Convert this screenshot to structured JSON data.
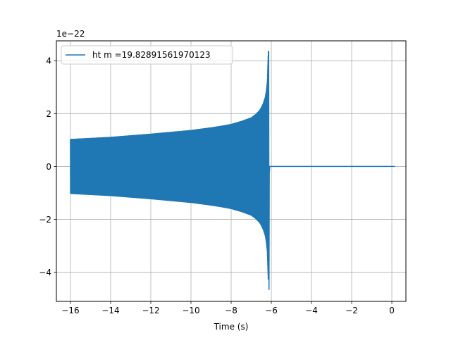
{
  "chart_data": {
    "type": "line",
    "title": "",
    "xlabel": "Time (s)",
    "ylabel": "",
    "y_offset_label": "1e−22",
    "xlim": [
      -16.7,
      0.7
    ],
    "ylim": [
      -5.1,
      4.75
    ],
    "x_ticks": [
      -16,
      -14,
      -12,
      -10,
      -8,
      -6,
      -4,
      -2,
      0
    ],
    "x_tick_labels": [
      "−16",
      "−14",
      "−12",
      "−10",
      "−8",
      "−6",
      "−4",
      "−2",
      "0"
    ],
    "y_ticks": [
      -4,
      -2,
      0,
      2,
      4
    ],
    "y_tick_labels": [
      "−4",
      "−2",
      "0",
      "2",
      "4"
    ],
    "grid": true,
    "legend_position": "upper-left",
    "series": [
      {
        "name": "ht m =19.82891561970123",
        "color": "#1f77b4",
        "envelope": {
          "t": [
            -16.0,
            -15.0,
            -14.0,
            -13.0,
            -12.0,
            -11.0,
            -10.0,
            -9.0,
            -8.5,
            -8.0,
            -7.5,
            -7.0,
            -6.8,
            -6.6,
            -6.5,
            -6.4,
            -6.3,
            -6.25,
            -6.2,
            -6.15
          ],
          "amplitude": [
            1.02,
            1.06,
            1.1,
            1.16,
            1.22,
            1.29,
            1.36,
            1.46,
            1.52,
            1.59,
            1.7,
            1.84,
            1.95,
            2.1,
            2.22,
            2.38,
            2.62,
            2.85,
            3.2,
            4.35
          ]
        },
        "merger_time": -6.1,
        "peak_max": 4.35,
        "peak_min": -4.65,
        "end_time": 0.15,
        "post_merger_value": 0.0
      }
    ]
  }
}
